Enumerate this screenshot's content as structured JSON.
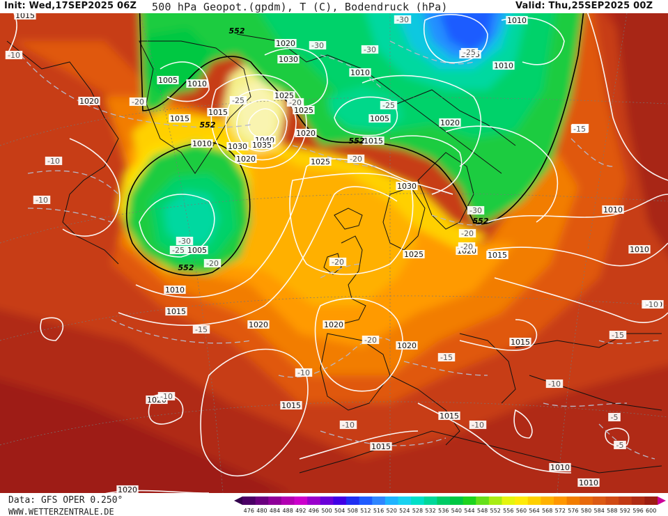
{
  "header": {
    "init": "Init: Wed,17SEP2025 06Z",
    "title": "500 hPa Geopot.(gpdm), T (C), Bodendruck (hPa)",
    "valid": "Valid: Thu,25SEP2025 00Z"
  },
  "footer": {
    "data_source": "Data: GFS OPER 0.250°",
    "website": "WWW.WETTERZENTRALE.DE"
  },
  "colorbar": {
    "values": [
      "476",
      "480",
      "484",
      "488",
      "492",
      "496",
      "500",
      "504",
      "508",
      "512",
      "516",
      "520",
      "524",
      "528",
      "532",
      "536",
      "540",
      "544",
      "548",
      "552",
      "556",
      "560",
      "564",
      "568",
      "572",
      "576",
      "580",
      "584",
      "588",
      "592",
      "596",
      "600"
    ],
    "colors": [
      "#4b0066",
      "#6b007f",
      "#8f0099",
      "#b200b2",
      "#cc00cc",
      "#9900cc",
      "#6a00d9",
      "#4000e6",
      "#1f2ff2",
      "#1f5cff",
      "#2f86ff",
      "#1fb4ff",
      "#19d2f0",
      "#00e0c8",
      "#00d89a",
      "#00cc66",
      "#00c843",
      "#1ed41e",
      "#66e01a",
      "#a8ec14",
      "#e5f50f",
      "#ffeb0a",
      "#ffd000",
      "#ffb200",
      "#ff9700",
      "#f27d00",
      "#e86a0c",
      "#dc5a14",
      "#d04a14",
      "#c23a14",
      "#b02c14",
      "#9c1e12"
    ],
    "arrow_left": "#33004d",
    "arrow_right": "#cc0099"
  },
  "pressure_labels": [
    {
      "t": "1015"
    },
    {
      "t": "1010"
    },
    {
      "t": "1005"
    },
    {
      "t": "1010"
    },
    {
      "t": "1020"
    },
    {
      "t": "1015"
    },
    {
      "t": "1020"
    },
    {
      "t": "1030"
    },
    {
      "t": "1025"
    },
    {
      "t": "1025"
    },
    {
      "t": "1040"
    },
    {
      "t": "1035"
    },
    {
      "t": "1030"
    },
    {
      "t": "1020"
    },
    {
      "t": "1020"
    },
    {
      "t": "1010"
    },
    {
      "t": "1015"
    },
    {
      "t": "1010"
    },
    {
      "t": "1005"
    },
    {
      "t": "1010"
    },
    {
      "t": "1005"
    },
    {
      "t": "1015"
    },
    {
      "t": "1020"
    },
    {
      "t": "1025"
    },
    {
      "t": "1030"
    },
    {
      "t": "1025"
    },
    {
      "t": "1020"
    },
    {
      "t": "1015"
    },
    {
      "t": "1010"
    },
    {
      "t": "1010"
    },
    {
      "t": "1005"
    },
    {
      "t": "1010"
    },
    {
      "t": "1015"
    },
    {
      "t": "1020"
    },
    {
      "t": "1020"
    },
    {
      "t": "1020"
    },
    {
      "t": "1020"
    },
    {
      "t": "1015"
    },
    {
      "t": "1015"
    },
    {
      "t": "1015"
    },
    {
      "t": "1015"
    },
    {
      "t": "1020"
    },
    {
      "t": "1010"
    },
    {
      "t": "1010"
    },
    {
      "t": "1010"
    },
    {
      "t": "1015"
    }
  ],
  "temp_labels": [
    {
      "t": "-10"
    },
    {
      "t": "-20"
    },
    {
      "t": "-25"
    },
    {
      "t": "-30"
    },
    {
      "t": "-25"
    },
    {
      "t": "-30"
    },
    {
      "t": "-30"
    },
    {
      "t": "-25"
    },
    {
      "t": "-20"
    },
    {
      "t": "-10"
    },
    {
      "t": "-10"
    },
    {
      "t": "-30"
    },
    {
      "t": "-25"
    },
    {
      "t": "-20"
    },
    {
      "t": "-20"
    },
    {
      "t": "-20"
    },
    {
      "t": "-20"
    },
    {
      "t": "-15"
    },
    {
      "t": "-20"
    },
    {
      "t": "-15"
    },
    {
      "t": "-15"
    },
    {
      "t": "-10"
    },
    {
      "t": "-10"
    },
    {
      "t": "-10"
    },
    {
      "t": "-10"
    },
    {
      "t": "-15"
    },
    {
      "t": "-10"
    },
    {
      "t": "-5"
    },
    {
      "t": "-5"
    },
    {
      "t": "-10"
    },
    {
      "t": "-15"
    },
    {
      "t": "-20"
    },
    {
      "t": "-30"
    }
  ],
  "geopot_labels": [
    {
      "t": "552"
    },
    {
      "t": "552"
    },
    {
      "t": "552"
    },
    {
      "t": "552"
    },
    {
      "t": "552"
    }
  ]
}
